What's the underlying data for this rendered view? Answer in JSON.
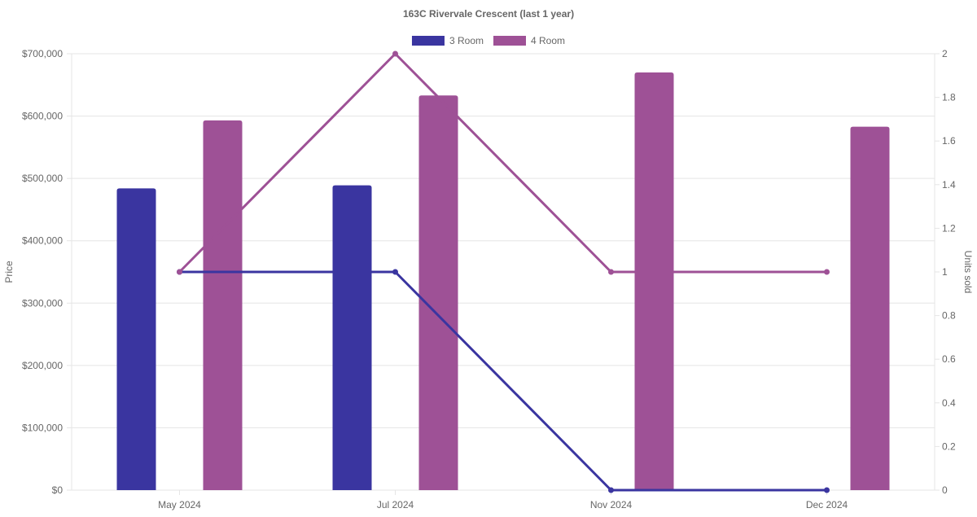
{
  "chart_data": {
    "type": "bar",
    "title": "163C Rivervale Crescent (last 1 year)",
    "categories": [
      "May 2024",
      "Jul 2024",
      "Nov 2024",
      "Dec 2024"
    ],
    "y_left": {
      "label": "Price",
      "min": 0,
      "max": 700000,
      "step": 100000,
      "tick_labels": [
        "$0",
        "$100,000",
        "$200,000",
        "$300,000",
        "$400,000",
        "$500,000",
        "$600,000",
        "$700,000"
      ]
    },
    "y_right": {
      "label": "Units sold",
      "min": 0,
      "max": 2,
      "step": 0.2,
      "tick_labels": [
        "0",
        "0.2",
        "0.4",
        "0.6",
        "0.8",
        "1",
        "1.2",
        "1.4",
        "1.6",
        "1.8",
        "2"
      ]
    },
    "series": [
      {
        "name": "3 Room",
        "color": "#3a35a0",
        "price": [
          484000,
          489000,
          null,
          null
        ],
        "units_sold": [
          1,
          1,
          0,
          0
        ]
      },
      {
        "name": "4 Room",
        "color": "#9e5196",
        "price": [
          593000,
          633000,
          670000,
          583000
        ],
        "units_sold": [
          1,
          2,
          1,
          1
        ]
      }
    ],
    "grid": true,
    "legend_position": "top-center"
  }
}
